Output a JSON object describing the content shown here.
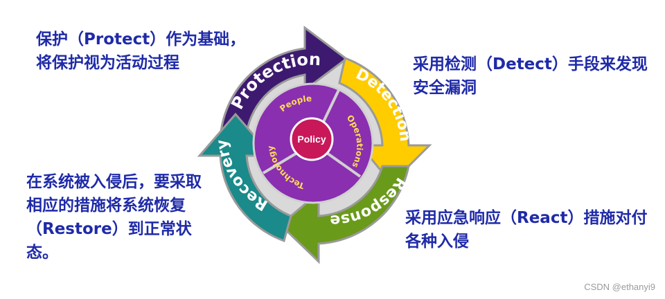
{
  "annotations": {
    "protect": "保护（Protect）作为基础，将保护视为活动过程",
    "detect": "采用检测（Detect）手段来发现安全漏洞",
    "recover": "在系统被入侵后，要采取相应的措施将系统恢复（Restore）到正常状态。",
    "react": "采用应急响应（React）措施对付各种入侵"
  },
  "cycle": {
    "outer": [
      {
        "label": "Protection",
        "color": "#3d1a70"
      },
      {
        "label": "Detection",
        "color": "#ffcc00"
      },
      {
        "label": "Response",
        "color": "#6a9a1a"
      },
      {
        "label": "Recovery",
        "color": "#1a8a8a"
      }
    ],
    "inner": [
      "People",
      "Operations",
      "Technology"
    ],
    "center": "Policy",
    "colors": {
      "inner_ring": "#8a2fb0",
      "center": "#c8185a",
      "gap": "#cfcfcf"
    }
  },
  "watermark": "CSDN @ethanyi9"
}
